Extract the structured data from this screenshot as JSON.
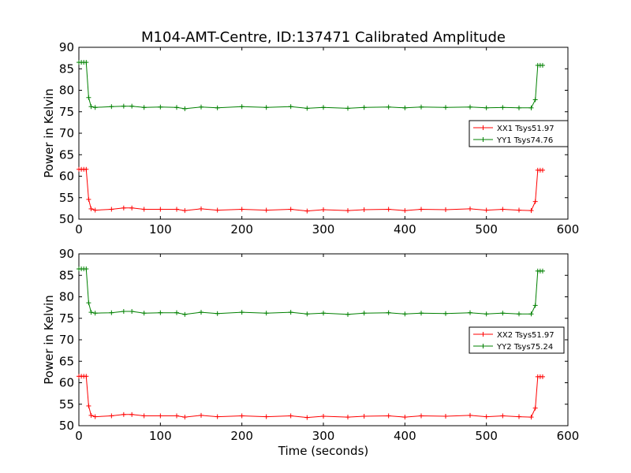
{
  "chart_data": [
    {
      "type": "line",
      "title": "M104-AMT-Centre, ID:137471 Calibrated Amplitude",
      "xlabel": "",
      "ylabel": "Power in Kelvin",
      "xlim": [
        0,
        600
      ],
      "ylim": [
        50,
        90
      ],
      "xticks": [
        "0",
        "100",
        "200",
        "300",
        "400",
        "500",
        "600"
      ],
      "yticks": [
        "50",
        "55",
        "60",
        "65",
        "70",
        "75",
        "80",
        "85",
        "90"
      ],
      "grid": false,
      "legend_position": "center-right",
      "series": [
        {
          "name": "XX1 Tsys51.97",
          "color": "#ff0000",
          "x": [
            0,
            3,
            6,
            9,
            12,
            15,
            20,
            40,
            55,
            65,
            80,
            100,
            120,
            130,
            150,
            170,
            200,
            230,
            260,
            280,
            300,
            330,
            350,
            380,
            400,
            420,
            450,
            480,
            500,
            520,
            540,
            555,
            560,
            563,
            566,
            569
          ],
          "y": [
            61.6,
            61.6,
            61.6,
            61.6,
            54.6,
            52.4,
            52.1,
            52.3,
            52.6,
            52.6,
            52.3,
            52.3,
            52.3,
            52.0,
            52.4,
            52.1,
            52.3,
            52.1,
            52.3,
            51.9,
            52.2,
            52.0,
            52.2,
            52.3,
            52.0,
            52.3,
            52.2,
            52.4,
            52.1,
            52.3,
            52.1,
            52.0,
            54.1,
            61.4,
            61.4,
            61.4
          ]
        },
        {
          "name": "YY1 Tsys74.76",
          "color": "#008000",
          "x": [
            0,
            3,
            6,
            9,
            12,
            15,
            20,
            40,
            55,
            65,
            80,
            100,
            120,
            130,
            150,
            170,
            200,
            230,
            260,
            280,
            300,
            330,
            350,
            380,
            400,
            420,
            450,
            480,
            500,
            520,
            540,
            555,
            560,
            563,
            566,
            569
          ],
          "y": [
            86.5,
            86.5,
            86.5,
            86.5,
            78.3,
            76.2,
            76.0,
            76.2,
            76.3,
            76.3,
            76.0,
            76.1,
            76.0,
            75.7,
            76.1,
            75.9,
            76.2,
            76.0,
            76.2,
            75.8,
            76.0,
            75.8,
            76.0,
            76.1,
            75.9,
            76.1,
            76.0,
            76.1,
            75.9,
            76.0,
            75.9,
            75.9,
            77.8,
            85.8,
            85.8,
            85.8
          ]
        }
      ]
    },
    {
      "type": "line",
      "title": "",
      "xlabel": "Time (seconds)",
      "ylabel": "Power in Kelvin",
      "xlim": [
        0,
        600
      ],
      "ylim": [
        50,
        90
      ],
      "xticks": [
        "0",
        "100",
        "200",
        "300",
        "400",
        "500",
        "600"
      ],
      "yticks": [
        "50",
        "55",
        "60",
        "65",
        "70",
        "75",
        "80",
        "85",
        "90"
      ],
      "grid": false,
      "legend_position": "center-right",
      "series": [
        {
          "name": "XX2 Tsys51.97",
          "color": "#ff0000",
          "x": [
            0,
            3,
            6,
            9,
            12,
            15,
            20,
            40,
            55,
            65,
            80,
            100,
            120,
            130,
            150,
            170,
            200,
            230,
            260,
            280,
            300,
            330,
            350,
            380,
            400,
            420,
            450,
            480,
            500,
            520,
            540,
            555,
            560,
            563,
            566,
            569
          ],
          "y": [
            61.5,
            61.5,
            61.5,
            61.5,
            54.6,
            52.4,
            52.1,
            52.3,
            52.6,
            52.6,
            52.3,
            52.3,
            52.3,
            52.0,
            52.4,
            52.1,
            52.3,
            52.1,
            52.3,
            51.9,
            52.2,
            52.0,
            52.2,
            52.3,
            52.0,
            52.3,
            52.2,
            52.4,
            52.1,
            52.3,
            52.1,
            52.0,
            54.1,
            61.4,
            61.4,
            61.4
          ]
        },
        {
          "name": "YY2 Tsys75.24",
          "color": "#008000",
          "x": [
            0,
            3,
            6,
            9,
            12,
            15,
            20,
            40,
            55,
            65,
            80,
            100,
            120,
            130,
            150,
            170,
            200,
            230,
            260,
            280,
            300,
            330,
            350,
            380,
            400,
            420,
            450,
            480,
            500,
            520,
            540,
            555,
            560,
            563,
            566,
            569
          ],
          "y": [
            86.5,
            86.5,
            86.5,
            86.5,
            78.6,
            76.4,
            76.2,
            76.3,
            76.6,
            76.6,
            76.2,
            76.3,
            76.3,
            75.9,
            76.4,
            76.1,
            76.4,
            76.2,
            76.4,
            76.0,
            76.2,
            75.9,
            76.2,
            76.3,
            76.0,
            76.2,
            76.1,
            76.3,
            76.0,
            76.2,
            76.0,
            76.0,
            78.0,
            86.0,
            86.0,
            86.0
          ]
        }
      ]
    }
  ]
}
